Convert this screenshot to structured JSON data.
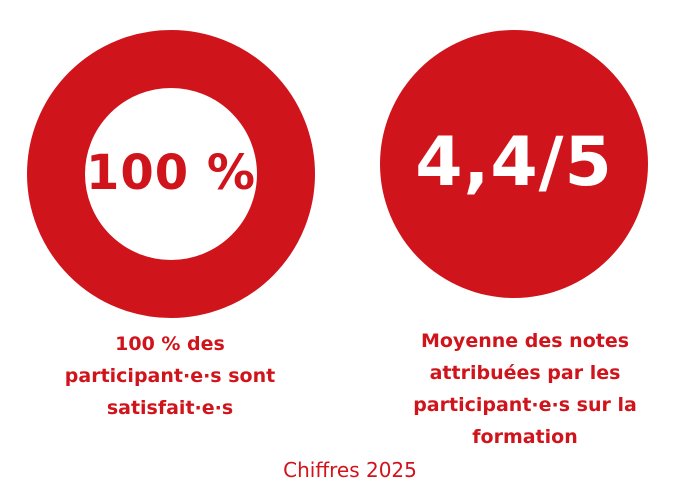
{
  "theme": {
    "accent": "#d0141c",
    "background": "#ffffff"
  },
  "stats": [
    {
      "value": "100 %",
      "style": "ring-outline",
      "caption_lines": [
        "100 % des",
        "participant·e·s sont",
        "satisfait·e·s"
      ]
    },
    {
      "value": "4,4/5",
      "style": "filled-circle",
      "caption_lines": [
        "Moyenne des notes",
        "attribuées par les",
        "participant·e·s sur la",
        "formation"
      ]
    }
  ],
  "footer": {
    "note": "Chiffres 2025"
  }
}
